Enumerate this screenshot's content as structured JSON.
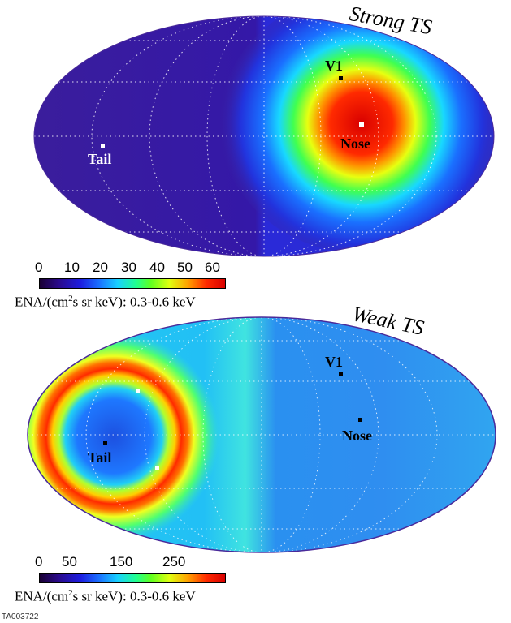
{
  "chart_data": [
    {
      "type": "heatmap",
      "title": "Strong TS",
      "projection": "Mollweide",
      "colorbar": {
        "ticks": [
          "0",
          "10",
          "20",
          "30",
          "40",
          "50",
          "60"
        ],
        "range": [
          0,
          65
        ],
        "label_prefix": "ENA/(cm",
        "label_sup": "2",
        "label_suffix": "s sr keV): 0.3-0.6 keV"
      },
      "markers": [
        {
          "label": "V1"
        },
        {
          "label": "Nose"
        },
        {
          "label": "Tail"
        }
      ]
    },
    {
      "type": "heatmap",
      "title": "Weak TS",
      "projection": "Mollweide",
      "colorbar": {
        "ticks": [
          "0",
          "50",
          "150",
          "250"
        ],
        "range": [
          0,
          300
        ],
        "label_prefix": "ENA/(cm",
        "label_sup": "2",
        "label_suffix": "s sr keV): 0.3-0.6 keV"
      },
      "markers": [
        {
          "label": "V1"
        },
        {
          "label": "Nose"
        },
        {
          "label": "Tail"
        }
      ]
    }
  ],
  "footer": {
    "id": "TA003722"
  }
}
